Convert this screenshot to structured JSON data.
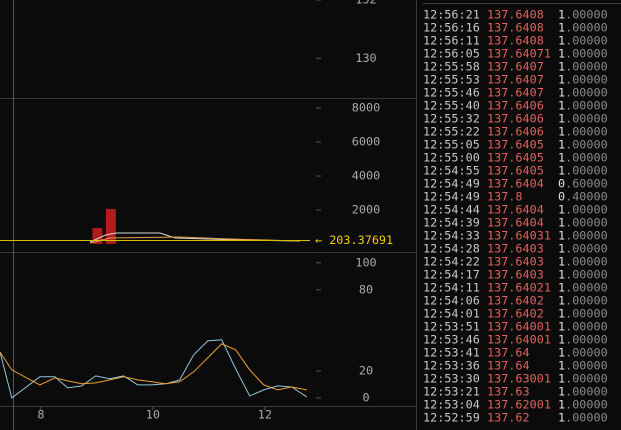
{
  "price_panel": {
    "ylim": [
      115,
      152
    ],
    "yticks": [
      130,
      152
    ]
  },
  "volume_panel": {
    "ylim": [
      -470,
      8590
    ],
    "yticks": [
      2000,
      4000,
      6000,
      8000
    ],
    "current": {
      "value": 203.37691,
      "label": "← 203.37691"
    },
    "bars": {
      "color": "#b01c1c",
      "x": [
        9.01,
        9.25
      ],
      "values": [
        940,
        2060
      ]
    },
    "lines": [
      {
        "color": "#d8d8d8",
        "x": [
          8.88,
          9.16,
          9.34,
          10.13,
          10.4,
          11.56,
          12.63
        ],
        "values": [
          118,
          529,
          647,
          647,
          353,
          235,
          176
        ]
      },
      {
        "color": "#e8a040",
        "x": [
          8.88,
          9.23,
          10.48,
          11.38,
          12.63
        ],
        "values": [
          59,
          353,
          412,
          294,
          176
        ]
      }
    ]
  },
  "indicator_panel": {
    "ylim": [
      -6,
      108
    ],
    "yticks": [
      0,
      20,
      80,
      100
    ],
    "x": [
      7.27,
      7.48,
      7.98,
      8.25,
      8.48,
      8.73,
      8.98,
      9.23,
      9.48,
      9.73,
      9.98,
      10.23,
      10.48,
      10.73,
      10.98,
      11.23,
      11.48,
      11.73,
      11.98,
      12.23,
      12.48,
      12.75
    ],
    "lines": [
      {
        "color": "#8fc6dc",
        "values": [
          34,
          0,
          15.6,
          15.6,
          7.4,
          8.9,
          16.3,
          14.1,
          16.3,
          9.6,
          9.6,
          10.4,
          13.3,
          31.9,
          42.2,
          43,
          21.5,
          1.5,
          5.9,
          8.9,
          8.1,
          0.7
        ]
      },
      {
        "color": "#f0a030",
        "values": [
          34,
          20.7,
          9.6,
          14.8,
          12.6,
          10.4,
          11.1,
          13.3,
          15.6,
          13.3,
          11.9,
          10.4,
          11.9,
          19.3,
          29.6,
          40,
          35.6,
          20.7,
          9.6,
          5.9,
          8.1,
          5.9
        ]
      }
    ]
  },
  "x_axis": {
    "xlim": [
      7.27,
      14.7
    ],
    "xticks": [
      8,
      10,
      12
    ]
  },
  "trades": [
    {
      "time": "12:56:21",
      "price": "137.6408",
      "amount": [
        "1",
        ".00000"
      ]
    },
    {
      "time": "12:56:16",
      "price": "137.6408",
      "amount": [
        "1",
        ".00000"
      ]
    },
    {
      "time": "12:56:11",
      "price": "137.6408",
      "amount": [
        "1",
        ".00000"
      ]
    },
    {
      "time": "12:56:05",
      "price": "137.64071",
      "amount": [
        "1",
        ".00000"
      ]
    },
    {
      "time": "12:55:58",
      "price": "137.6407",
      "amount": [
        "1",
        ".00000"
      ]
    },
    {
      "time": "12:55:53",
      "price": "137.6407",
      "amount": [
        "1",
        ".00000"
      ]
    },
    {
      "time": "12:55:46",
      "price": "137.6407",
      "amount": [
        "1",
        ".00000"
      ]
    },
    {
      "time": "12:55:40",
      "price": "137.6406",
      "amount": [
        "1",
        ".00000"
      ]
    },
    {
      "time": "12:55:32",
      "price": "137.6406",
      "amount": [
        "1",
        ".00000"
      ]
    },
    {
      "time": "12:55:22",
      "price": "137.6406",
      "amount": [
        "1",
        ".00000"
      ]
    },
    {
      "time": "12:55:05",
      "price": "137.6405",
      "amount": [
        "1",
        ".00000"
      ]
    },
    {
      "time": "12:55:00",
      "price": "137.6405",
      "amount": [
        "1",
        ".00000"
      ]
    },
    {
      "time": "12:54:55",
      "price": "137.6405",
      "amount": [
        "1",
        ".00000"
      ]
    },
    {
      "time": "12:54:49",
      "price": "137.6404",
      "amount": [
        "0",
        ".60000"
      ]
    },
    {
      "time": "12:54:49",
      "price": "137.8",
      "amount": [
        "0",
        ".40000"
      ]
    },
    {
      "time": "12:54:44",
      "price": "137.6404",
      "amount": [
        "1",
        ".00000"
      ]
    },
    {
      "time": "12:54:39",
      "price": "137.6404",
      "amount": [
        "1",
        ".00000"
      ]
    },
    {
      "time": "12:54:33",
      "price": "137.64031",
      "amount": [
        "1",
        ".00000"
      ]
    },
    {
      "time": "12:54:28",
      "price": "137.6403",
      "amount": [
        "1",
        ".00000"
      ]
    },
    {
      "time": "12:54:22",
      "price": "137.6403",
      "amount": [
        "1",
        ".00000"
      ]
    },
    {
      "time": "12:54:17",
      "price": "137.6403",
      "amount": [
        "1",
        ".00000"
      ]
    },
    {
      "time": "12:54:11",
      "price": "137.64021",
      "amount": [
        "1",
        ".00000"
      ]
    },
    {
      "time": "12:54:06",
      "price": "137.6402",
      "amount": [
        "1",
        ".00000"
      ]
    },
    {
      "time": "12:54:01",
      "price": "137.6402",
      "amount": [
        "1",
        ".00000"
      ]
    },
    {
      "time": "12:53:51",
      "price": "137.64001",
      "amount": [
        "1",
        ".00000"
      ]
    },
    {
      "time": "12:53:46",
      "price": "137.64001",
      "amount": [
        "1",
        ".00000"
      ]
    },
    {
      "time": "12:53:41",
      "price": "137.64",
      "amount": [
        "1",
        ".00000"
      ]
    },
    {
      "time": "12:53:36",
      "price": "137.64",
      "amount": [
        "1",
        ".00000"
      ]
    },
    {
      "time": "12:53:30",
      "price": "137.63001",
      "amount": [
        "1",
        ".00000"
      ]
    },
    {
      "time": "12:53:21",
      "price": "137.63",
      "amount": [
        "1",
        ".00000"
      ]
    },
    {
      "time": "12:53:04",
      "price": "137.62001",
      "amount": [
        "1",
        ".00000"
      ]
    },
    {
      "time": "12:52:59",
      "price": "137.62",
      "amount": [
        "1",
        ".00000"
      ]
    }
  ]
}
